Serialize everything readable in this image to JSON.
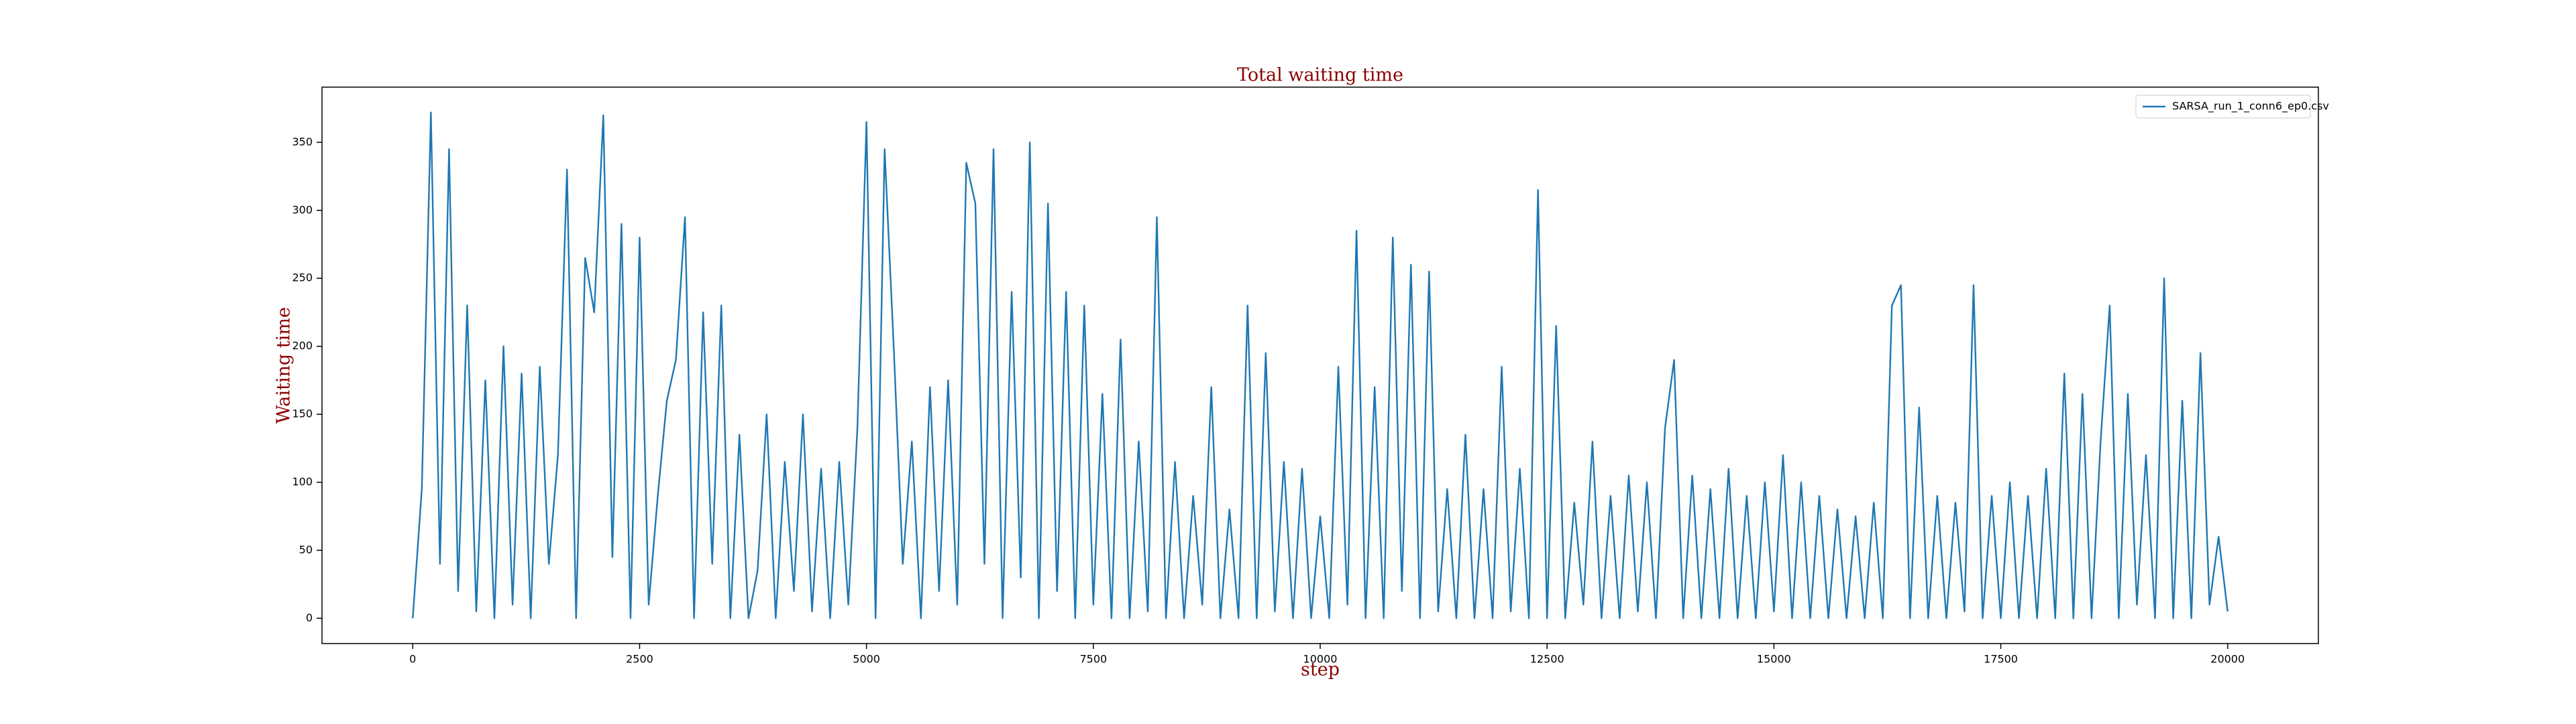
{
  "chart_data": {
    "type": "line",
    "title": "Total waiting time",
    "xlabel": "step",
    "ylabel": "Waiting time",
    "x": [
      0,
      100,
      200,
      300,
      400,
      500,
      600,
      700,
      800,
      900,
      1000,
      1100,
      1200,
      1300,
      1400,
      1500,
      1600,
      1700,
      1800,
      1900,
      2000,
      2100,
      2200,
      2300,
      2400,
      2500,
      2600,
      2700,
      2800,
      2900,
      3000,
      3100,
      3200,
      3300,
      3400,
      3500,
      3600,
      3700,
      3800,
      3900,
      4000,
      4100,
      4200,
      4300,
      4400,
      4500,
      4600,
      4700,
      4800,
      4900,
      5000,
      5100,
      5200,
      5300,
      5400,
      5500,
      5600,
      5700,
      5800,
      5900,
      6000,
      6100,
      6200,
      6300,
      6400,
      6500,
      6600,
      6700,
      6800,
      6900,
      7000,
      7100,
      7200,
      7300,
      7400,
      7500,
      7600,
      7700,
      7800,
      7900,
      8000,
      8100,
      8200,
      8300,
      8400,
      8500,
      8600,
      8700,
      8800,
      8900,
      9000,
      9100,
      9200,
      9300,
      9400,
      9500,
      9600,
      9700,
      9800,
      9900,
      10000,
      10100,
      10200,
      10300,
      10400,
      10500,
      10600,
      10700,
      10800,
      10900,
      11000,
      11100,
      11200,
      11300,
      11400,
      11500,
      11600,
      11700,
      11800,
      11900,
      12000,
      12100,
      12200,
      12300,
      12400,
      12500,
      12600,
      12700,
      12800,
      12900,
      13000,
      13100,
      13200,
      13300,
      13400,
      13500,
      13600,
      13700,
      13800,
      13900,
      14000,
      14100,
      14200,
      14300,
      14400,
      14500,
      14600,
      14700,
      14800,
      14900,
      15000,
      15100,
      15200,
      15300,
      15400,
      15500,
      15600,
      15700,
      15800,
      15900,
      16000,
      16100,
      16200,
      16300,
      16400,
      16500,
      16600,
      16700,
      16800,
      16900,
      17000,
      17100,
      17200,
      17300,
      17400,
      17500,
      17600,
      17700,
      17800,
      17900,
      18000,
      18100,
      18200,
      18300,
      18400,
      18500,
      18600,
      18700,
      18800,
      18900,
      19000,
      19100,
      19200,
      19300,
      19400,
      19500,
      19600,
      19700,
      19800,
      19900,
      20000
    ],
    "series": [
      {
        "name": "SARSA_run_1_conn6_ep0.csv",
        "color": "#1f77b4",
        "values": [
          0,
          95,
          372,
          40,
          345,
          20,
          230,
          5,
          175,
          0,
          200,
          10,
          180,
          0,
          185,
          40,
          120,
          330,
          0,
          265,
          225,
          370,
          45,
          290,
          0,
          280,
          10,
          90,
          160,
          190,
          295,
          0,
          225,
          40,
          230,
          0,
          135,
          0,
          35,
          150,
          0,
          115,
          20,
          150,
          5,
          110,
          0,
          115,
          10,
          140,
          365,
          0,
          345,
          200,
          40,
          130,
          0,
          170,
          20,
          175,
          10,
          335,
          305,
          40,
          345,
          0,
          240,
          30,
          350,
          0,
          305,
          20,
          240,
          0,
          230,
          10,
          165,
          0,
          205,
          0,
          130,
          5,
          295,
          0,
          115,
          0,
          90,
          10,
          170,
          0,
          80,
          0,
          230,
          0,
          195,
          5,
          115,
          0,
          110,
          0,
          75,
          0,
          185,
          10,
          285,
          0,
          170,
          0,
          280,
          20,
          260,
          0,
          255,
          5,
          95,
          0,
          135,
          0,
          95,
          0,
          185,
          5,
          110,
          0,
          315,
          0,
          215,
          0,
          85,
          10,
          130,
          0,
          90,
          0,
          105,
          5,
          100,
          0,
          140,
          190,
          0,
          105,
          0,
          95,
          0,
          110,
          0,
          90,
          0,
          100,
          5,
          120,
          0,
          100,
          0,
          90,
          0,
          80,
          0,
          75,
          0,
          85,
          0,
          230,
          245,
          0,
          155,
          0,
          90,
          0,
          85,
          5,
          245,
          0,
          90,
          0,
          100,
          0,
          90,
          0,
          110,
          0,
          180,
          0,
          165,
          0,
          130,
          230,
          0,
          165,
          10,
          120,
          0,
          250,
          0,
          160,
          0,
          195,
          10,
          60,
          5
        ]
      }
    ],
    "xlim": [
      -1000,
      21000
    ],
    "xticks": [
      0,
      2500,
      5000,
      7500,
      10000,
      12500,
      15000,
      17500,
      20000
    ],
    "ylim": [
      -18.6,
      390.6
    ],
    "yticks": [
      0,
      50,
      100,
      150,
      200,
      250,
      300,
      350
    ],
    "legend": "upper right"
  }
}
